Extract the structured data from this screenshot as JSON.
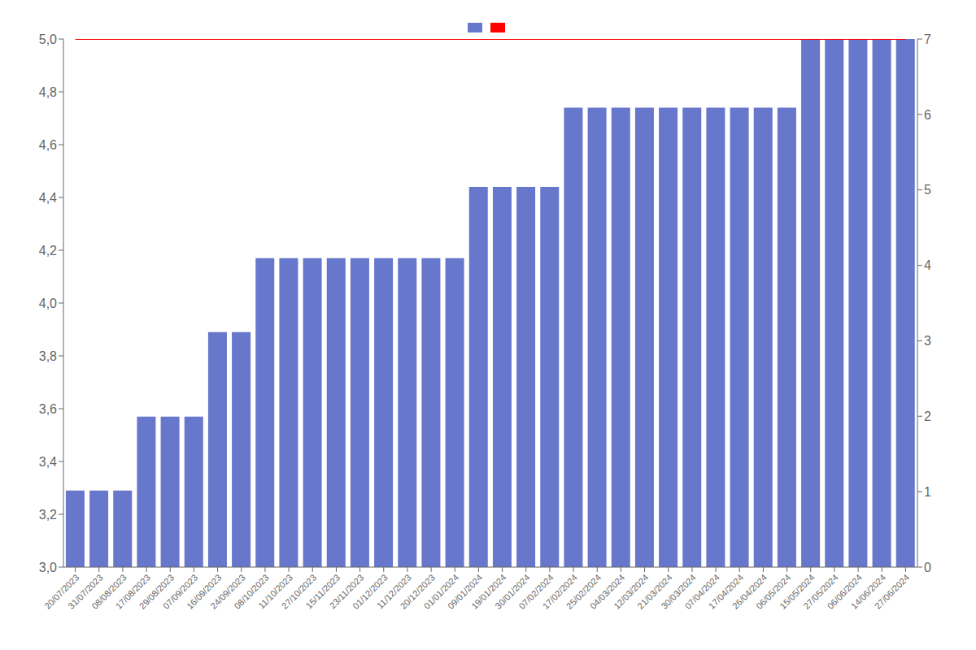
{
  "chart_data": {
    "type": "bar",
    "categories": [
      "20/07/2023",
      "31/07/2023",
      "08/08/2023",
      "17/08/2023",
      "29/08/2023",
      "07/09/2023",
      "16/09/2023",
      "24/09/2023",
      "08/10/2023",
      "11/10/2023",
      "27/10/2023",
      "15/11/2023",
      "23/11/2023",
      "01/12/2023",
      "11/12/2023",
      "20/12/2023",
      "01/01/2024",
      "09/01/2024",
      "19/01/2024",
      "30/01/2024",
      "07/02/2024",
      "17/02/2024",
      "25/02/2024",
      "04/03/2024",
      "12/03/2024",
      "21/03/2024",
      "30/03/2024",
      "07/04/2024",
      "17/04/2024",
      "26/04/2024",
      "06/05/2024",
      "15/05/2024",
      "27/05/2024",
      "06/06/2024",
      "14/06/2024",
      "27/06/2024"
    ],
    "series": [
      {
        "type": "bar",
        "color": "#6677cc",
        "values": [
          3.29,
          3.29,
          3.29,
          3.57,
          3.57,
          3.57,
          3.89,
          3.89,
          4.17,
          4.17,
          4.17,
          4.17,
          4.17,
          4.17,
          4.17,
          4.17,
          4.17,
          4.44,
          4.44,
          4.44,
          4.44,
          4.74,
          4.74,
          4.74,
          4.74,
          4.74,
          4.74,
          4.74,
          4.74,
          4.74,
          4.74,
          5.0,
          5.0,
          5.0,
          5.0,
          5.0
        ]
      },
      {
        "type": "line",
        "color": "#ff0000",
        "values": [
          5.0,
          5.0,
          5.0,
          5.0,
          5.0,
          5.0,
          5.0,
          5.0,
          5.0,
          5.0,
          5.0,
          5.0,
          5.0,
          5.0,
          5.0,
          5.0,
          5.0,
          5.0,
          5.0,
          5.0,
          5.0,
          5.0,
          5.0,
          5.0,
          5.0,
          5.0,
          5.0,
          5.0,
          5.0,
          5.0,
          5.0,
          5.0,
          5.0,
          5.0,
          5.0,
          5.0
        ]
      }
    ],
    "ylim": [
      3.0,
      5.0
    ],
    "yticks": [
      {
        "value": 3.0,
        "label": "3,0"
      },
      {
        "value": 3.2,
        "label": "3,2"
      },
      {
        "value": 3.4,
        "label": "3,4"
      },
      {
        "value": 3.6,
        "label": "3,6"
      },
      {
        "value": 3.8,
        "label": "3,8"
      },
      {
        "value": 4.0,
        "label": "4,0"
      },
      {
        "value": 4.2,
        "label": "4,2"
      },
      {
        "value": 4.4,
        "label": "4,4"
      },
      {
        "value": 4.6,
        "label": "4,6"
      },
      {
        "value": 4.8,
        "label": "4,8"
      },
      {
        "value": 5.0,
        "label": "5,0"
      }
    ],
    "y2lim": [
      0,
      7
    ],
    "y2ticks": [
      0,
      1,
      2,
      3,
      4,
      5,
      6,
      7
    ],
    "grid": false,
    "legend": "top"
  }
}
